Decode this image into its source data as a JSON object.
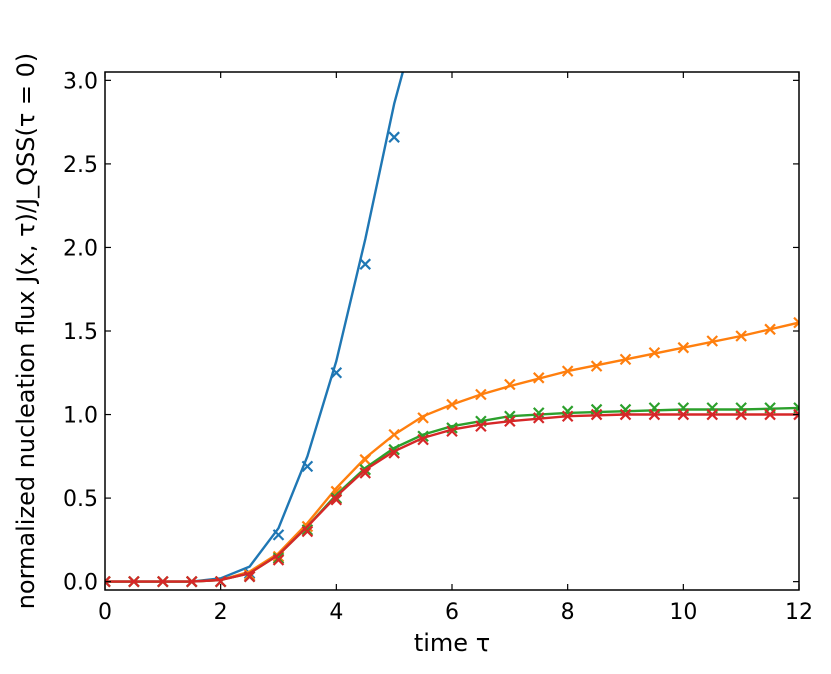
{
  "chart_data": {
    "type": "line",
    "title": "",
    "xlabel": "time τ",
    "ylabel": "normalized nucleation flux J(x, τ)/J_QSS(τ = 0)",
    "xlim": [
      0,
      12
    ],
    "ylim": [
      -0.05,
      3.05
    ],
    "xticks": [
      0,
      2,
      4,
      6,
      8,
      10,
      12
    ],
    "yticks": [
      0.0,
      0.5,
      1.0,
      1.5,
      2.0,
      2.5,
      3.0
    ],
    "xtick_labels": [
      "0",
      "2",
      "4",
      "6",
      "8",
      "10",
      "12"
    ],
    "ytick_labels": [
      "0.0",
      "0.5",
      "1.0",
      "1.5",
      "2.0",
      "2.5",
      "3.0"
    ],
    "grid": false,
    "legend": "none",
    "series": [
      {
        "color": "#1f77b4",
        "line": {
          "x": [
            0,
            1.5,
            2.0,
            2.5,
            3.0,
            3.5,
            4.0,
            4.5,
            5.0,
            5.15
          ],
          "y": [
            0.0,
            0.0,
            0.02,
            0.09,
            0.32,
            0.75,
            1.32,
            2.05,
            2.86,
            3.05
          ]
        },
        "markers": {
          "x": [
            0,
            0.5,
            1.0,
            1.5,
            2.0,
            2.5,
            3.0,
            3.5,
            4.0,
            4.5,
            5.0
          ],
          "y": [
            0.0,
            0.0,
            0.0,
            0.0,
            0.0,
            0.05,
            0.28,
            0.69,
            1.25,
            1.9,
            2.66
          ]
        }
      },
      {
        "color": "#ff7f0e",
        "line": {
          "x": [
            0,
            1.5,
            2.0,
            2.5,
            3.0,
            3.5,
            4.0,
            4.5,
            5.0,
            5.5,
            6.0,
            6.5,
            7.0,
            8.0,
            9.0,
            10.0,
            11.0,
            12.0
          ],
          "y": [
            0.0,
            0.0,
            0.01,
            0.06,
            0.17,
            0.35,
            0.56,
            0.74,
            0.88,
            0.99,
            1.06,
            1.12,
            1.17,
            1.26,
            1.33,
            1.4,
            1.47,
            1.55
          ]
        },
        "markers": {
          "x": [
            0,
            0.5,
            1.0,
            1.5,
            2.0,
            2.5,
            3.0,
            3.5,
            4.0,
            4.5,
            5.0,
            5.5,
            6.0,
            6.5,
            7.0,
            7.5,
            8.0,
            8.5,
            9.0,
            9.5,
            10.0,
            10.5,
            11.0,
            11.5,
            12.0
          ],
          "y": [
            0.0,
            0.0,
            0.0,
            0.0,
            0.0,
            0.04,
            0.15,
            0.33,
            0.54,
            0.73,
            0.88,
            0.98,
            1.06,
            1.12,
            1.18,
            1.22,
            1.26,
            1.29,
            1.33,
            1.37,
            1.4,
            1.44,
            1.47,
            1.51,
            1.55
          ]
        }
      },
      {
        "color": "#2ca02c",
        "line": {
          "x": [
            0,
            1.5,
            2.0,
            2.5,
            3.0,
            3.5,
            4.0,
            4.5,
            5.0,
            5.5,
            6.0,
            6.5,
            7.0,
            8.0,
            9.0,
            10.0,
            11.0,
            12.0
          ],
          "y": [
            0.0,
            0.0,
            0.01,
            0.05,
            0.16,
            0.33,
            0.52,
            0.68,
            0.8,
            0.88,
            0.93,
            0.96,
            0.99,
            1.01,
            1.02,
            1.03,
            1.03,
            1.04
          ]
        },
        "markers": {
          "x": [
            0,
            0.5,
            1.0,
            1.5,
            2.0,
            2.5,
            3.0,
            3.5,
            4.0,
            4.5,
            5.0,
            5.5,
            6.0,
            6.5,
            7.0,
            7.5,
            8.0,
            8.5,
            9.0,
            9.5,
            10.0,
            10.5,
            11.0,
            11.5,
            12.0
          ],
          "y": [
            0.0,
            0.0,
            0.0,
            0.0,
            0.0,
            0.03,
            0.14,
            0.31,
            0.5,
            0.67,
            0.79,
            0.87,
            0.92,
            0.96,
            0.99,
            1.01,
            1.02,
            1.03,
            1.03,
            1.04,
            1.04,
            1.04,
            1.04,
            1.04,
            1.04
          ]
        }
      },
      {
        "color": "#d62728",
        "line": {
          "x": [
            0,
            1.5,
            2.0,
            2.5,
            3.0,
            3.5,
            4.0,
            4.5,
            5.0,
            5.5,
            6.0,
            6.5,
            7.0,
            8.0,
            9.0,
            10.0,
            11.0,
            12.0
          ],
          "y": [
            0.0,
            0.0,
            0.01,
            0.05,
            0.16,
            0.33,
            0.51,
            0.67,
            0.78,
            0.86,
            0.91,
            0.94,
            0.96,
            0.99,
            1.0,
            1.0,
            1.0,
            1.0
          ]
        },
        "markers": {
          "x": [
            0,
            0.5,
            1.0,
            1.5,
            2.0,
            2.5,
            3.0,
            3.5,
            4.0,
            4.5,
            5.0,
            5.5,
            6.0,
            6.5,
            7.0,
            7.5,
            8.0,
            8.5,
            9.0,
            9.5,
            10.0,
            10.5,
            11.0,
            11.5,
            12.0
          ],
          "y": [
            0.0,
            0.0,
            0.0,
            0.0,
            0.0,
            0.03,
            0.13,
            0.3,
            0.49,
            0.65,
            0.77,
            0.85,
            0.9,
            0.93,
            0.96,
            0.98,
            0.99,
            1.0,
            1.0,
            1.0,
            1.0,
            1.0,
            1.0,
            1.0,
            1.0
          ]
        }
      }
    ]
  }
}
